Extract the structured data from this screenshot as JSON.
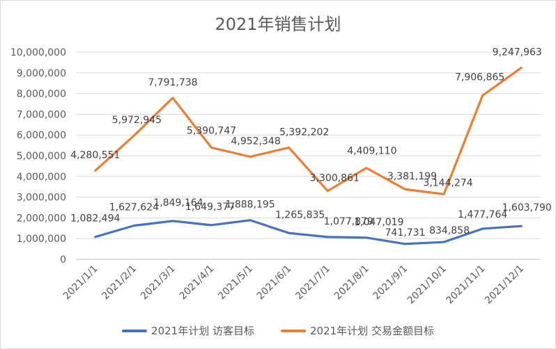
{
  "chart_data": {
    "type": "line",
    "title": "2021年销售计划",
    "categories": [
      "2021/1/1",
      "2021/2/1",
      "2021/3/1",
      "2021/4/1",
      "2021/5/1",
      "2021/6/1",
      "2021/7/1",
      "2021/8/1",
      "2021/9/1",
      "2021/10/1",
      "2021/11/1",
      "2021/12/1"
    ],
    "ylim": [
      0,
      10000000
    ],
    "yticks": [
      "0",
      "1,000,000",
      "2,000,000",
      "3,000,000",
      "4,000,000",
      "5,000,000",
      "6,000,000",
      "7,000,000",
      "8,000,000",
      "9,000,000",
      "10,000,000"
    ],
    "grid": true,
    "legend_position": "bottom",
    "series": [
      {
        "name": "2021年计划 访客目标",
        "color": "#4472c4",
        "values": [
          1082494,
          1627624,
          1849164,
          1649377,
          1888195,
          1265835,
          1077879,
          1047019,
          741731,
          834858,
          1477764,
          1603790
        ],
        "labels": [
          "1,082,494",
          "1,627,624",
          "1,849,164",
          "1,649,377",
          "1,888,195",
          "1,265,835",
          "1,077,879",
          "1,047,019",
          "741,731",
          "834,858",
          "1,477,764",
          "1,603,790"
        ]
      },
      {
        "name": "2021年计划 交易金额目标",
        "color": "#ed7d31",
        "values": [
          4280551,
          5972945,
          7791738,
          5390747,
          4952348,
          5392202,
          3300861,
          4409110,
          3381199,
          3144274,
          7906865,
          9247963
        ],
        "labels": [
          "4,280,551",
          "5,972,945",
          "7,791,738",
          "5,390,747",
          "4,952,348",
          "5,392,202",
          "3,300,861",
          "4,409,110",
          "3,381,199",
          "3,144,274",
          "7,906,865",
          "9,247,963"
        ]
      }
    ]
  }
}
